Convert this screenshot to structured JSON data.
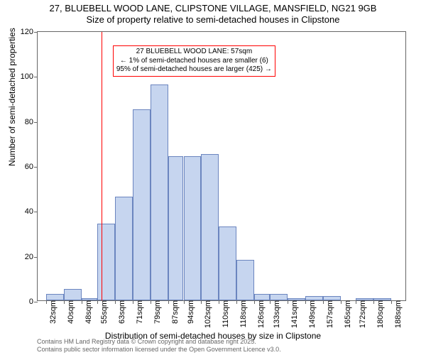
{
  "title": {
    "line1": "27, BLUEBELL WOOD LANE, CLIPSTONE VILLAGE, MANSFIELD, NG21 9GB",
    "line2": "Size of property relative to semi-detached houses in Clipstone"
  },
  "chart": {
    "type": "histogram",
    "ylabel": "Number of semi-detached properties",
    "xlabel": "Distribution of semi-detached houses by size in Clipstone",
    "ylim": [
      0,
      120
    ],
    "yticks": [
      0,
      20,
      40,
      60,
      80,
      100,
      120
    ],
    "xlim_sqm": [
      28,
      195
    ],
    "xticks_sqm": [
      32,
      40,
      48,
      55,
      63,
      71,
      79,
      87,
      94,
      102,
      110,
      118,
      126,
      133,
      141,
      149,
      157,
      165,
      172,
      180,
      188
    ],
    "xtick_suffix": "sqm",
    "bar_color": "#c6d5ef",
    "bar_border_color": "#6b85bf",
    "bar_opacity": 1.0,
    "background_color": "#ffffff",
    "axis_color": "#666666",
    "bars": [
      {
        "x_sqm": 32,
        "w_sqm": 8,
        "value": 3
      },
      {
        "x_sqm": 40,
        "w_sqm": 8,
        "value": 5
      },
      {
        "x_sqm": 48,
        "w_sqm": 7,
        "value": 1
      },
      {
        "x_sqm": 55,
        "w_sqm": 8,
        "value": 34
      },
      {
        "x_sqm": 63,
        "w_sqm": 8,
        "value": 46
      },
      {
        "x_sqm": 71,
        "w_sqm": 8,
        "value": 85
      },
      {
        "x_sqm": 79,
        "w_sqm": 8,
        "value": 96
      },
      {
        "x_sqm": 87,
        "w_sqm": 7,
        "value": 64
      },
      {
        "x_sqm": 94,
        "w_sqm": 8,
        "value": 64
      },
      {
        "x_sqm": 102,
        "w_sqm": 8,
        "value": 65
      },
      {
        "x_sqm": 110,
        "w_sqm": 8,
        "value": 33
      },
      {
        "x_sqm": 118,
        "w_sqm": 8,
        "value": 18
      },
      {
        "x_sqm": 126,
        "w_sqm": 7,
        "value": 3
      },
      {
        "x_sqm": 133,
        "w_sqm": 8,
        "value": 3
      },
      {
        "x_sqm": 141,
        "w_sqm": 8,
        "value": 1
      },
      {
        "x_sqm": 149,
        "w_sqm": 8,
        "value": 2
      },
      {
        "x_sqm": 157,
        "w_sqm": 8,
        "value": 2
      },
      {
        "x_sqm": 165,
        "w_sqm": 7,
        "value": 0
      },
      {
        "x_sqm": 172,
        "w_sqm": 8,
        "value": 1
      },
      {
        "x_sqm": 180,
        "w_sqm": 8,
        "value": 1
      },
      {
        "x_sqm": 188,
        "w_sqm": 7,
        "value": 0
      }
    ],
    "reference_line": {
      "x_sqm": 57,
      "color": "#ff0000",
      "width": 1
    },
    "annotation": {
      "lines": [
        "27 BLUEBELL WOOD LANE: 57sqm",
        "← 1% of semi-detached houses are smaller (6)",
        "95% of semi-detached houses are larger (425) →"
      ],
      "border_color": "#ff0000",
      "x_sqm": 62,
      "y_value": 114,
      "fontsize": 10
    }
  },
  "footer": {
    "line1": "Contains HM Land Registry data © Crown copyright and database right 2025.",
    "line2": "Contains public sector information licensed under the Open Government Licence v3.0."
  }
}
